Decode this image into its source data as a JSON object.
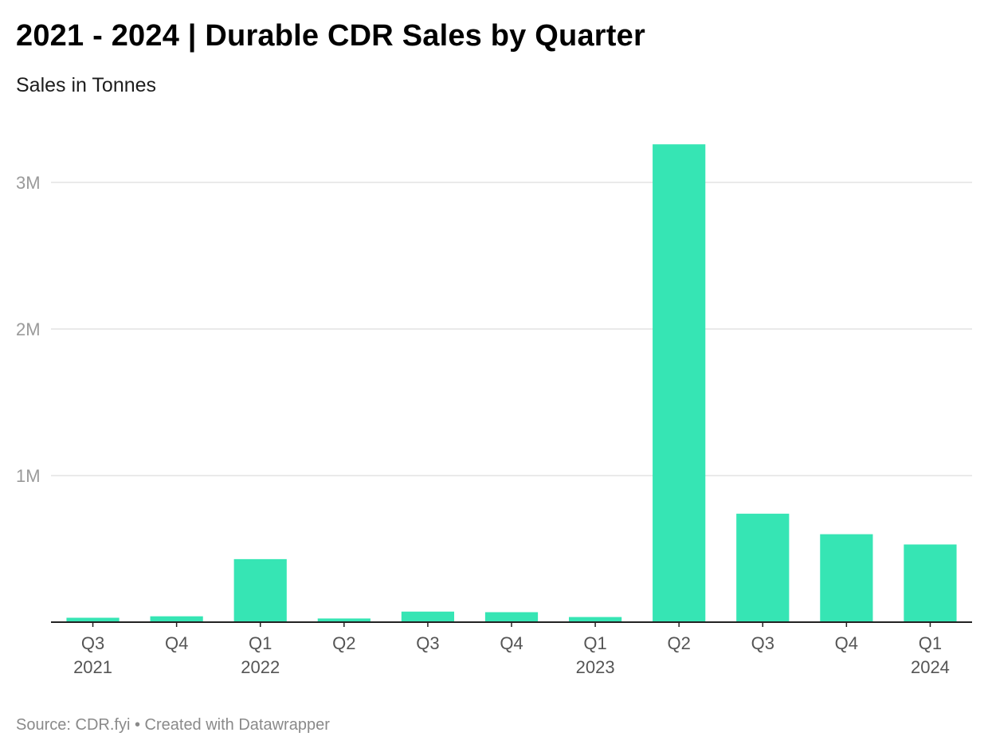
{
  "header": {
    "title": "2021 - 2024 | Durable CDR Sales by Quarter",
    "subtitle": "Sales in Tonnes"
  },
  "footer": {
    "source_label": "Source:",
    "source_name": "CDR.fyi",
    "separator": "•",
    "credit": "Created with Datawrapper"
  },
  "colors": {
    "bar": "#36e5b4",
    "grid": "#e3e3e3",
    "axis": "#222222"
  },
  "chart_data": {
    "type": "bar",
    "title": "2021 - 2024 | Durable CDR Sales by Quarter",
    "subtitle": "Sales in Tonnes",
    "xlabel": "",
    "ylabel": "Sales in Tonnes",
    "ylim": [
      0,
      3300000
    ],
    "yticks": [
      {
        "value": 1000000,
        "label": "1M"
      },
      {
        "value": 2000000,
        "label": "2M"
      },
      {
        "value": 3000000,
        "label": "3M"
      }
    ],
    "grid": true,
    "categories": [
      {
        "quarter": "Q3",
        "year": "2021"
      },
      {
        "quarter": "Q4",
        "year": ""
      },
      {
        "quarter": "Q1",
        "year": "2022"
      },
      {
        "quarter": "Q2",
        "year": ""
      },
      {
        "quarter": "Q3",
        "year": ""
      },
      {
        "quarter": "Q4",
        "year": ""
      },
      {
        "quarter": "Q1",
        "year": "2023"
      },
      {
        "quarter": "Q2",
        "year": ""
      },
      {
        "quarter": "Q3",
        "year": ""
      },
      {
        "quarter": "Q4",
        "year": ""
      },
      {
        "quarter": "Q1",
        "year": "2024"
      }
    ],
    "values": [
      30000,
      40000,
      430000,
      25000,
      72000,
      68000,
      35000,
      3260000,
      740000,
      600000,
      530000
    ]
  }
}
